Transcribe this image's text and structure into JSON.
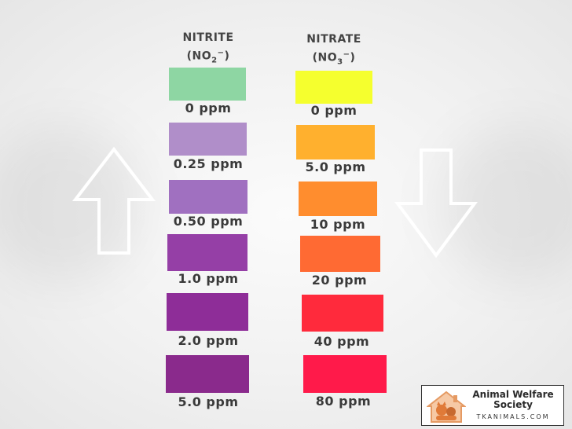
{
  "nitrite": {
    "title": "NITRITE",
    "formula_base": "(NO",
    "formula_sub": "2",
    "formula_sup": "−",
    "formula_end": ")",
    "swatches": [
      {
        "label": "0 ppm",
        "color": "#8ed6a3"
      },
      {
        "label": "0.25 ppm",
        "color": "#b08ec9"
      },
      {
        "label": "0.50 ppm",
        "color": "#a070c0"
      },
      {
        "label": "1.0 ppm",
        "color": "#953fa6"
      },
      {
        "label": "2.0 ppm",
        "color": "#8e2d98"
      },
      {
        "label": "5.0 ppm",
        "color": "#8a2a8c"
      }
    ]
  },
  "nitrate": {
    "title": "NITRATE",
    "formula_base": "(NO",
    "formula_sub": "3",
    "formula_sup": "−",
    "formula_end": ")",
    "swatches": [
      {
        "label": "0 ppm",
        "color": "#f5ff2e"
      },
      {
        "label": "5.0 ppm",
        "color": "#ffb02e"
      },
      {
        "label": "10 ppm",
        "color": "#ff8d2e"
      },
      {
        "label": "20 ppm",
        "color": "#ff6a33"
      },
      {
        "label": "40 ppm",
        "color": "#ff2a3c"
      },
      {
        "label": "80 ppm",
        "color": "#ff1a4a"
      }
    ]
  },
  "logo": {
    "name_line1": "Animal Welfare",
    "name_line2": "Society",
    "url": "TKANIMALS.COM"
  }
}
